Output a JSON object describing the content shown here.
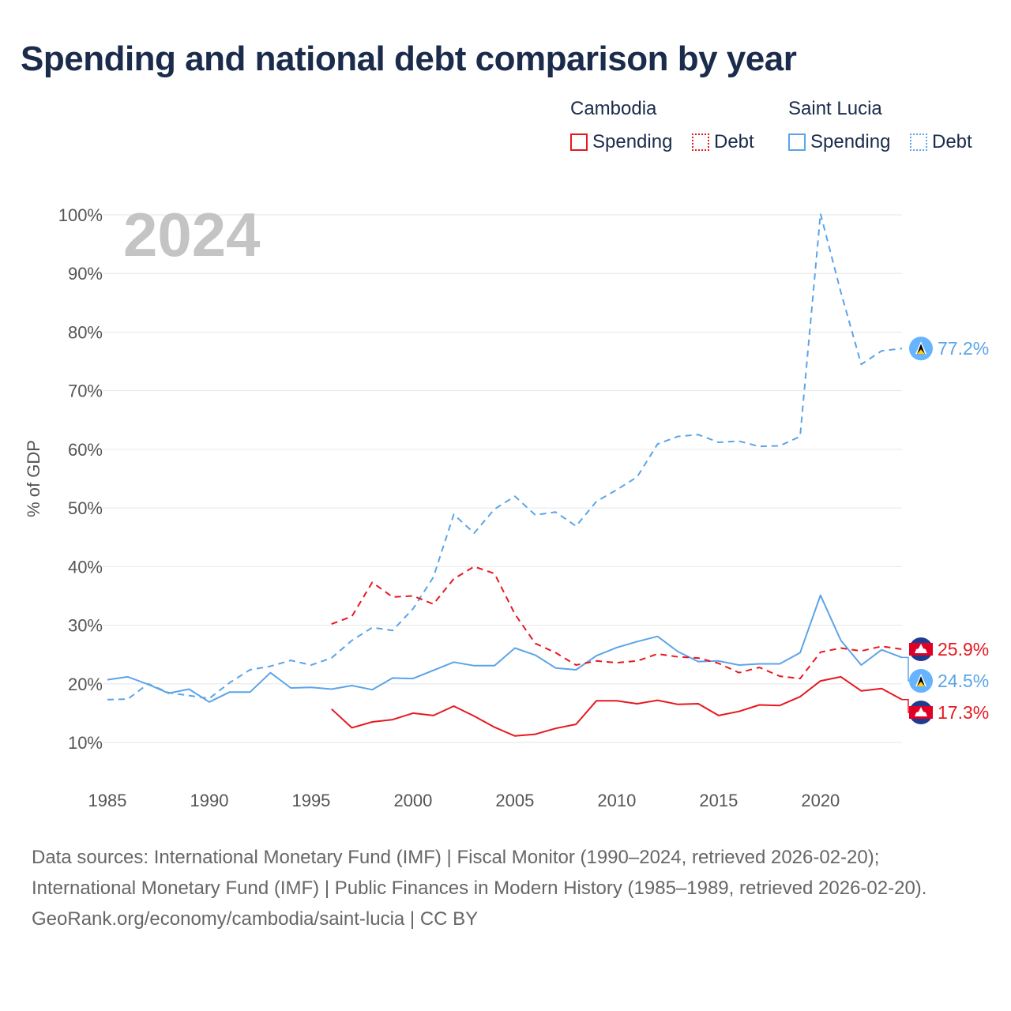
{
  "title": "Spending and national debt comparison by year",
  "legend": {
    "cambodia": {
      "name": "Cambodia",
      "spending": "Spending",
      "debt": "Debt"
    },
    "saint_lucia": {
      "name": "Saint Lucia",
      "spending": "Spending",
      "debt": "Debt"
    }
  },
  "colors": {
    "cambodia": "#e8171f",
    "saint_lucia": "#5ba4e8",
    "grid": "#e6e6e6",
    "year_watermark": "#c4c4c4"
  },
  "footer": {
    "sources": "Data sources: International Monetary Fund (IMF) | Fiscal Monitor (1990–2024, retrieved 2026-02-20); International Monetary Fund (IMF) | Public Finances in Modern History (1985–1989, retrieved 2026-02-20).",
    "credit": "GeoRank.org/economy/cambodia/saint-lucia | CC BY"
  },
  "chart_data": {
    "type": "line",
    "title": "Spending and national debt comparison by year",
    "ylabel": "% of GDP",
    "xlabel": "",
    "year_label": "2024",
    "xlim": [
      1985,
      2024
    ],
    "ylim": [
      10,
      100
    ],
    "x_ticks": [
      "1985",
      "1990",
      "1995",
      "2000",
      "2005",
      "2010",
      "2015",
      "2020"
    ],
    "y_ticks": [
      "10%",
      "20%",
      "30%",
      "40%",
      "50%",
      "60%",
      "70%",
      "80%",
      "90%",
      "100%"
    ],
    "grid": true,
    "series": [
      {
        "name": "Saint Lucia Debt",
        "country": "saint_lucia",
        "style": "dashed",
        "end_label": "77.2%",
        "x": [
          1985,
          1986,
          1987,
          1988,
          1989,
          1990,
          1991,
          1992,
          1993,
          1994,
          1995,
          1996,
          1997,
          1998,
          1999,
          2000,
          2001,
          2002,
          2003,
          2004,
          2005,
          2006,
          2007,
          2008,
          2009,
          2010,
          2011,
          2012,
          2013,
          2014,
          2015,
          2016,
          2017,
          2018,
          2019,
          2020,
          2021,
          2022,
          2023,
          2024
        ],
        "values": [
          17.3,
          17.4,
          20.0,
          18.5,
          18.0,
          17.5,
          20.2,
          22.4,
          23.0,
          24.0,
          23.2,
          24.4,
          27.4,
          29.6,
          29.1,
          32.8,
          38.2,
          48.9,
          45.7,
          49.8,
          52.0,
          48.8,
          49.3,
          46.9,
          51.1,
          53.1,
          55.3,
          60.9,
          62.2,
          62.5,
          61.2,
          61.4,
          60.5,
          60.6,
          62.2,
          100.2,
          86.8,
          74.5,
          76.8,
          77.2
        ]
      },
      {
        "name": "Saint Lucia Spending",
        "country": "saint_lucia",
        "style": "solid",
        "end_label": "24.5%",
        "x": [
          1985,
          1986,
          1987,
          1988,
          1989,
          1990,
          1991,
          1992,
          1993,
          1994,
          1995,
          1996,
          1997,
          1998,
          1999,
          2000,
          2001,
          2002,
          2003,
          2004,
          2005,
          2006,
          2007,
          2008,
          2009,
          2010,
          2011,
          2012,
          2013,
          2014,
          2015,
          2016,
          2017,
          2018,
          2019,
          2020,
          2021,
          2022,
          2023,
          2024
        ],
        "values": [
          20.7,
          21.2,
          19.9,
          18.4,
          19.1,
          16.9,
          18.6,
          18.6,
          21.9,
          19.3,
          19.4,
          19.1,
          19.7,
          19.0,
          21.0,
          20.9,
          22.3,
          23.7,
          23.1,
          23.1,
          26.1,
          24.9,
          22.7,
          22.4,
          24.8,
          26.2,
          27.2,
          28.1,
          25.5,
          23.8,
          23.9,
          23.2,
          23.4,
          23.4,
          25.3,
          35.1,
          27.4,
          23.2,
          25.8,
          24.5
        ]
      },
      {
        "name": "Cambodia Debt",
        "country": "cambodia",
        "style": "dashed",
        "end_label": "25.9%",
        "x": [
          1996,
          1997,
          1998,
          1999,
          2000,
          2001,
          2002,
          2003,
          2004,
          2005,
          2006,
          2007,
          2008,
          2009,
          2010,
          2011,
          2012,
          2013,
          2014,
          2015,
          2016,
          2017,
          2018,
          2019,
          2020,
          2021,
          2022,
          2023,
          2024
        ],
        "values": [
          30.2,
          31.5,
          37.3,
          34.8,
          35.0,
          33.6,
          37.9,
          40.0,
          38.8,
          31.9,
          26.9,
          25.3,
          23.2,
          23.9,
          23.6,
          23.9,
          25.1,
          24.6,
          24.4,
          23.5,
          21.9,
          22.8,
          21.3,
          20.9,
          25.4,
          26.1,
          25.6,
          26.4,
          25.9
        ]
      },
      {
        "name": "Cambodia Spending",
        "country": "cambodia",
        "style": "solid",
        "end_label": "17.3%",
        "x": [
          1996,
          1997,
          1998,
          1999,
          2000,
          2001,
          2002,
          2003,
          2004,
          2005,
          2006,
          2007,
          2008,
          2009,
          2010,
          2011,
          2012,
          2013,
          2014,
          2015,
          2016,
          2017,
          2018,
          2019,
          2020,
          2021,
          2022,
          2023,
          2024
        ],
        "values": [
          15.7,
          12.5,
          13.5,
          13.9,
          15.0,
          14.6,
          16.2,
          14.5,
          12.6,
          11.1,
          11.4,
          12.4,
          13.1,
          17.1,
          17.1,
          16.6,
          17.2,
          16.5,
          16.6,
          14.6,
          15.3,
          16.4,
          16.3,
          17.8,
          20.5,
          21.2,
          18.8,
          19.2,
          17.3
        ]
      }
    ]
  }
}
